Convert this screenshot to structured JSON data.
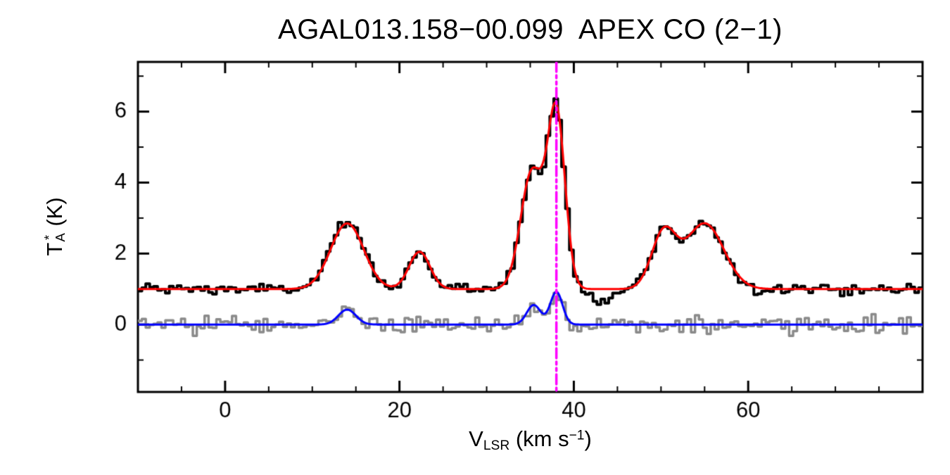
{
  "title": "AGAL013.158−00.099  APEX CO (2−1)",
  "labels": {
    "ylabel_parts": {
      "base": "T",
      "sup": "*",
      "sub": "A",
      "unit": " (K)"
    },
    "xlabel_parts": {
      "base": "V",
      "sub": "LSR",
      "unit_pre": " (km s",
      "sup": "−1",
      "unit_post": ")"
    }
  },
  "chart_data": {
    "type": "line",
    "title": "AGAL013.158−00.099  APEX CO (2−1)",
    "xlabel": "V_LSR (km s^-1)",
    "ylabel": "T_A^* (K)",
    "xlim": [
      -10,
      80
    ],
    "ylim": [
      -1.9,
      7.4
    ],
    "xticks": [
      0,
      20,
      40,
      60
    ],
    "yticks": [
      0,
      2,
      4,
      6
    ],
    "xminor_step": 5,
    "yminor_step": 1,
    "grid": false,
    "frame_color": "#000000",
    "vline": {
      "x": 38.0,
      "color": "#ff00ff",
      "style": "dash-dot-dot"
    },
    "series": [
      {
        "name": "co21-observed-spectrum",
        "type": "histogram",
        "color": "#000000",
        "line_width": 4,
        "baseline": 1.0,
        "noise_sigma": 0.08,
        "noise_seed": 1234,
        "bin_width": 0.45,
        "gaussians": [
          {
            "center": 14.0,
            "peak": 1.85,
            "sigma": 1.9
          },
          {
            "center": 22.3,
            "peak": 1.05,
            "sigma": 1.2
          },
          {
            "center": 35.2,
            "peak": 3.3,
            "sigma": 1.3
          },
          {
            "center": 38.0,
            "peak": 4.9,
            "sigma": 1.0
          },
          {
            "center": 43.3,
            "peak": -0.47,
            "sigma": 0.9
          },
          {
            "center": 50.3,
            "peak": 1.55,
            "sigma": 1.4
          },
          {
            "center": 55.0,
            "peak": 1.85,
            "sigma": 2.2
          }
        ]
      },
      {
        "name": "red-gaussian-fit",
        "type": "smooth",
        "color": "#ff0000",
        "line_width": 3,
        "baseline": 1.0,
        "gaussians": [
          {
            "center": 14.0,
            "peak": 1.85,
            "sigma": 1.9
          },
          {
            "center": 22.3,
            "peak": 1.05,
            "sigma": 1.2
          },
          {
            "center": 35.2,
            "peak": 3.3,
            "sigma": 1.3
          },
          {
            "center": 38.0,
            "peak": 4.9,
            "sigma": 1.0
          },
          {
            "center": 50.3,
            "peak": 1.55,
            "sigma": 1.4
          },
          {
            "center": 55.0,
            "peak": 1.85,
            "sigma": 2.2
          }
        ]
      },
      {
        "name": "gray-reference-spectrum",
        "type": "histogram",
        "color": "#8a8a8a",
        "line_width": 3.5,
        "baseline": 0.0,
        "noise_sigma": 0.12,
        "noise_seed": 777,
        "bin_width": 0.45,
        "gaussians": [
          {
            "center": 14.0,
            "peak": 0.42,
            "sigma": 1.0
          },
          {
            "center": 35.4,
            "peak": 0.55,
            "sigma": 0.8
          },
          {
            "center": 38.0,
            "peak": 0.92,
            "sigma": 0.7
          }
        ]
      },
      {
        "name": "blue-gaussian-fit",
        "type": "smooth",
        "color": "#0000ff",
        "line_width": 3,
        "baseline": 0.0,
        "gaussians": [
          {
            "center": 14.0,
            "peak": 0.42,
            "sigma": 1.0
          },
          {
            "center": 35.4,
            "peak": 0.55,
            "sigma": 0.8
          },
          {
            "center": 38.0,
            "peak": 0.92,
            "sigma": 0.7
          }
        ]
      }
    ]
  }
}
